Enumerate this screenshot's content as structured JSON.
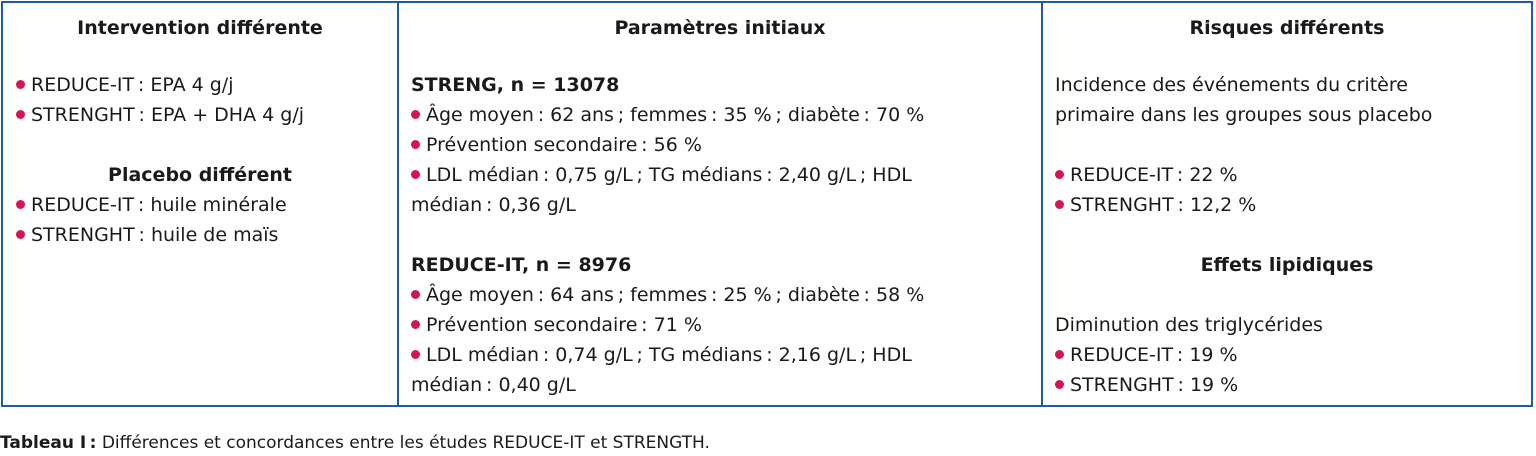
{
  "col1": {
    "header": "Intervention différente",
    "intervention": [
      "REDUCE-IT : EPA 4 g/j",
      "STRENGHT : EPA + DHA 4 g/j"
    ],
    "placebo_title": "Placebo différent",
    "placebo": [
      "REDUCE-IT : huile minérale",
      "STRENGHT : huile de maïs"
    ]
  },
  "col2": {
    "header": "Paramètres initiaux",
    "streng_title": "STRENG, n = 13078",
    "streng": [
      "Âge moyen : 62 ans ; femmes : 35 % ; diabète : 70 %",
      "Prévention secondaire : 56 %",
      "LDL médian : 0,75 g/L ; TG médians : 2,40 g/L ; HDL"
    ],
    "streng_cont": "médian : 0,36 g/L",
    "reduce_title": "REDUCE-IT, n = 8976",
    "reduce": [
      "Âge moyen : 64 ans ; femmes : 25 % ; diabète : 58 %",
      "Prévention secondaire : 71 %",
      "LDL médian : 0,74 g/L ; TG médians : 2,16 g/L ; HDL"
    ],
    "reduce_cont": "médian : 0,40 g/L"
  },
  "col3": {
    "header": "Risques différents",
    "incidence_line1": "Incidence des événements du critère",
    "incidence_line2": "primaire dans les groupes sous placebo",
    "incidence": [
      "REDUCE-IT : 22 %",
      "STRENGHT : 12,2 %"
    ],
    "lipid_title": "Effets lipidiques",
    "lipid_intro": "Diminution des triglycérides",
    "lipid": [
      "REDUCE-IT : 19 %",
      "STRENGHT : 19 %"
    ]
  },
  "caption": {
    "label": "Tableau I :",
    "text": " Différences et concordances entre les études REDUCE-IT et STRENGTH."
  },
  "colors": {
    "border": "#1f5aa6",
    "bullet": "#d4145a"
  }
}
